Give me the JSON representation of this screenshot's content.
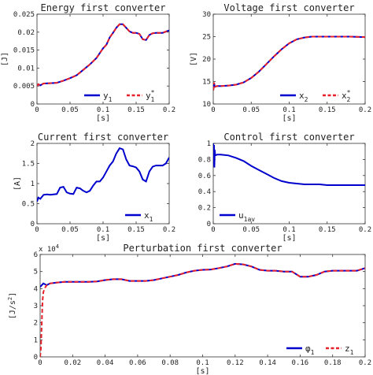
{
  "chart_data": [
    {
      "type": "line",
      "title": "Energy first converter",
      "xlabel": "[s]",
      "ylabel": "[J]",
      "xlim": [
        0,
        0.2
      ],
      "ylim": [
        0,
        0.025
      ],
      "x_ticks": [
        "0",
        "0.05",
        "0.1",
        "0.15",
        "0.2"
      ],
      "y_ticks": [
        "0",
        "0.005",
        "0.01",
        "0.015",
        "0.02",
        "0.025"
      ],
      "legend_position": "bottom-right",
      "legend": [
        {
          "text": "y",
          "sub": "1",
          "sup": ""
        },
        {
          "text": "y",
          "sub": "1",
          "sup": "*"
        }
      ],
      "series": [
        {
          "color": "#0000cc",
          "dash": "",
          "x": [
            0,
            0.002,
            0.005,
            0.01,
            0.02,
            0.03,
            0.04,
            0.05,
            0.06,
            0.07,
            0.08,
            0.09,
            0.1,
            0.105,
            0.11,
            0.115,
            0.12,
            0.125,
            0.13,
            0.135,
            0.14,
            0.145,
            0.15,
            0.155,
            0.16,
            0.165,
            0.17,
            0.175,
            0.18,
            0.19,
            0.2
          ],
          "y": [
            0.005,
            0.0055,
            0.0052,
            0.0057,
            0.0058,
            0.0059,
            0.0065,
            0.0072,
            0.008,
            0.0095,
            0.011,
            0.0128,
            0.0155,
            0.0165,
            0.0185,
            0.0198,
            0.0212,
            0.0222,
            0.0222,
            0.0212,
            0.0202,
            0.0198,
            0.0198,
            0.0195,
            0.018,
            0.0178,
            0.0192,
            0.0197,
            0.0198,
            0.0198,
            0.0205
          ]
        },
        {
          "color": "#e8202a",
          "dash": "5,3",
          "x": [
            0,
            0.002,
            0.005,
            0.01,
            0.02,
            0.03,
            0.04,
            0.05,
            0.06,
            0.07,
            0.08,
            0.09,
            0.1,
            0.105,
            0.11,
            0.115,
            0.12,
            0.125,
            0.13,
            0.135,
            0.14,
            0.145,
            0.15,
            0.155,
            0.16,
            0.165,
            0.17,
            0.175,
            0.18,
            0.19,
            0.2
          ],
          "y": [
            0.005,
            0.0055,
            0.0052,
            0.0057,
            0.0058,
            0.0059,
            0.0065,
            0.0072,
            0.008,
            0.0095,
            0.011,
            0.0128,
            0.0155,
            0.0165,
            0.0185,
            0.0198,
            0.0212,
            0.0222,
            0.0222,
            0.0212,
            0.0202,
            0.0198,
            0.0198,
            0.0195,
            0.018,
            0.0178,
            0.0192,
            0.0197,
            0.0198,
            0.0198,
            0.0205
          ]
        }
      ]
    },
    {
      "type": "line",
      "title": "Voltage first converter",
      "xlabel": "[s]",
      "ylabel": "[V]",
      "xlim": [
        0,
        0.2
      ],
      "ylim": [
        10,
        30
      ],
      "x_ticks": [
        "0",
        "0.05",
        "0.1",
        "0.15",
        "0.2"
      ],
      "y_ticks": [
        "10",
        "15",
        "20",
        "25",
        "30"
      ],
      "legend_position": "bottom-right",
      "legend": [
        {
          "text": "x",
          "sub": "2",
          "sup": ""
        },
        {
          "text": "x",
          "sub": "2",
          "sup": "*"
        }
      ],
      "series": [
        {
          "color": "#0000cc",
          "dash": "",
          "x": [
            0,
            0.001,
            0.002,
            0.005,
            0.01,
            0.02,
            0.03,
            0.04,
            0.05,
            0.06,
            0.07,
            0.08,
            0.09,
            0.1,
            0.11,
            0.12,
            0.13,
            0.14,
            0.15,
            0.16,
            0.18,
            0.2
          ],
          "y": [
            13,
            14.8,
            13.8,
            14,
            14,
            14.1,
            14.3,
            14.8,
            15.8,
            17.2,
            18.9,
            20.6,
            22.2,
            23.5,
            24.4,
            24.8,
            25,
            25,
            25,
            25,
            25,
            24.9
          ]
        },
        {
          "color": "#e8202a",
          "dash": "5,3",
          "x": [
            0,
            0.001,
            0.002,
            0.005,
            0.01,
            0.02,
            0.03,
            0.04,
            0.05,
            0.06,
            0.07,
            0.08,
            0.09,
            0.1,
            0.11,
            0.12,
            0.13,
            0.14,
            0.15,
            0.16,
            0.18,
            0.2
          ],
          "y": [
            13,
            14.8,
            13.8,
            14,
            14,
            14.1,
            14.3,
            14.8,
            15.8,
            17.2,
            18.9,
            20.6,
            22.2,
            23.5,
            24.4,
            24.8,
            25,
            25,
            25,
            25,
            25,
            24.9
          ]
        }
      ]
    },
    {
      "type": "line",
      "title": "Current first converter",
      "xlabel": "[s]",
      "ylabel": "[A]",
      "xlim": [
        0,
        0.2
      ],
      "ylim": [
        0,
        2
      ],
      "x_ticks": [
        "0",
        "0.05",
        "0.1",
        "0.15",
        "0.2"
      ],
      "y_ticks": [
        "0",
        "0.5",
        "1",
        "1.5",
        "2"
      ],
      "legend_position": "bottom-right",
      "legend": [
        {
          "text": "x",
          "sub": "1",
          "sup": ""
        }
      ],
      "series": [
        {
          "color": "#0000cc",
          "dash": "",
          "x": [
            0,
            0.002,
            0.005,
            0.01,
            0.015,
            0.02,
            0.03,
            0.035,
            0.04,
            0.045,
            0.05,
            0.055,
            0.06,
            0.065,
            0.07,
            0.075,
            0.08,
            0.085,
            0.09,
            0.095,
            0.1,
            0.105,
            0.11,
            0.115,
            0.12,
            0.125,
            0.13,
            0.135,
            0.14,
            0.145,
            0.15,
            0.155,
            0.16,
            0.165,
            0.17,
            0.175,
            0.18,
            0.19,
            0.195,
            0.2
          ],
          "y": [
            0.55,
            0.65,
            0.62,
            0.72,
            0.73,
            0.72,
            0.74,
            0.9,
            0.92,
            0.78,
            0.75,
            0.74,
            0.9,
            0.88,
            0.82,
            0.78,
            0.82,
            0.95,
            1.05,
            1.05,
            1.15,
            1.3,
            1.45,
            1.55,
            1.75,
            1.88,
            1.85,
            1.6,
            1.45,
            1.43,
            1.4,
            1.3,
            1.1,
            1.05,
            1.3,
            1.42,
            1.45,
            1.45,
            1.5,
            1.65
          ]
        }
      ]
    },
    {
      "type": "line",
      "title": "Control first converter",
      "xlabel": "[s]",
      "ylabel": "",
      "xlim": [
        0,
        0.2
      ],
      "ylim": [
        0,
        1
      ],
      "x_ticks": [
        "0",
        "0.05",
        "0.1",
        "0.15",
        "0.2"
      ],
      "y_ticks": [
        "0",
        "0.2",
        "0.4",
        "0.6",
        "0.8",
        "1"
      ],
      "legend_position": "bottom-left",
      "legend": [
        {
          "text": "u",
          "sub": "1av",
          "sup": ""
        }
      ],
      "series": [
        {
          "color": "#0000cc",
          "dash": "",
          "x": [
            0,
            0.0005,
            0.001,
            0.0015,
            0.002,
            0.0025,
            0.005,
            0.01,
            0.02,
            0.03,
            0.04,
            0.05,
            0.06,
            0.07,
            0.08,
            0.09,
            0.1,
            0.11,
            0.12,
            0.13,
            0.14,
            0.15,
            0.16,
            0.17,
            0.18,
            0.19,
            0.2
          ],
          "y": [
            1,
            0.72,
            0.98,
            0.7,
            0.92,
            0.85,
            0.86,
            0.86,
            0.85,
            0.82,
            0.78,
            0.72,
            0.67,
            0.62,
            0.57,
            0.53,
            0.51,
            0.5,
            0.49,
            0.49,
            0.49,
            0.48,
            0.48,
            0.48,
            0.48,
            0.48,
            0.48
          ]
        }
      ]
    },
    {
      "type": "line",
      "title": "Perturbation first converter",
      "xlabel": "[s]",
      "ylabel": "[J/s",
      "ylabel_sup": "2",
      "ylabel_end": "]",
      "y_multiplier": "x 10",
      "y_multiplier_exp": "4",
      "xlim": [
        0,
        0.2
      ],
      "ylim": [
        0,
        6
      ],
      "x_ticks": [
        "0",
        "0.02",
        "0.04",
        "0.06",
        "0.08",
        "0.1",
        "0.12",
        "0.14",
        "0.16",
        "0.18",
        "0.2"
      ],
      "y_ticks": [
        "0",
        "1",
        "2",
        "3",
        "4",
        "5",
        "6"
      ],
      "legend_position": "bottom-right",
      "legend": [
        {
          "text": "φ",
          "sub": "1",
          "sup": ""
        },
        {
          "text": "z",
          "sub": "1",
          "sup": ""
        }
      ],
      "series": [
        {
          "color": "#0000cc",
          "dash": "",
          "x": [
            0,
            0.002,
            0.004,
            0.006,
            0.01,
            0.015,
            0.02,
            0.025,
            0.03,
            0.035,
            0.04,
            0.045,
            0.05,
            0.055,
            0.06,
            0.065,
            0.07,
            0.075,
            0.08,
            0.085,
            0.09,
            0.095,
            0.1,
            0.105,
            0.11,
            0.115,
            0.12,
            0.125,
            0.13,
            0.135,
            0.14,
            0.145,
            0.15,
            0.155,
            0.16,
            0.165,
            0.17,
            0.175,
            0.18,
            0.185,
            0.19,
            0.195,
            0.2
          ],
          "y": [
            4.1,
            4.3,
            4.2,
            4.3,
            4.35,
            4.4,
            4.4,
            4.4,
            4.4,
            4.42,
            4.5,
            4.55,
            4.55,
            4.45,
            4.45,
            4.45,
            4.5,
            4.6,
            4.7,
            4.8,
            4.95,
            5.05,
            5.1,
            5.12,
            5.2,
            5.3,
            5.45,
            5.42,
            5.3,
            5.1,
            5.05,
            5.05,
            5.0,
            5.0,
            4.7,
            4.7,
            4.8,
            5.0,
            5.05,
            5.05,
            5.05,
            5.05,
            5.2
          ]
        },
        {
          "color": "#e8202a",
          "dash": "5,3",
          "x": [
            0,
            0.0005,
            0.001,
            0.0015,
            0.002,
            0.003,
            0.004,
            0.006,
            0.01,
            0.015,
            0.02,
            0.025,
            0.03,
            0.035,
            0.04,
            0.045,
            0.05,
            0.055,
            0.06,
            0.065,
            0.07,
            0.075,
            0.08,
            0.085,
            0.09,
            0.095,
            0.1,
            0.105,
            0.11,
            0.115,
            0.12,
            0.125,
            0.13,
            0.135,
            0.14,
            0.145,
            0.15,
            0.155,
            0.16,
            0.165,
            0.17,
            0.175,
            0.18,
            0.185,
            0.19,
            0.195,
            0.2
          ],
          "y": [
            0,
            0.5,
            2.0,
            3.3,
            3.8,
            4.05,
            4.2,
            4.3,
            4.35,
            4.4,
            4.4,
            4.4,
            4.4,
            4.42,
            4.5,
            4.55,
            4.55,
            4.45,
            4.45,
            4.45,
            4.5,
            4.6,
            4.7,
            4.8,
            4.95,
            5.05,
            5.1,
            5.12,
            5.2,
            5.3,
            5.45,
            5.42,
            5.3,
            5.1,
            5.05,
            5.05,
            5.0,
            5.0,
            4.7,
            4.7,
            4.8,
            5.0,
            5.05,
            5.05,
            5.05,
            5.05,
            5.2
          ]
        }
      ]
    }
  ]
}
